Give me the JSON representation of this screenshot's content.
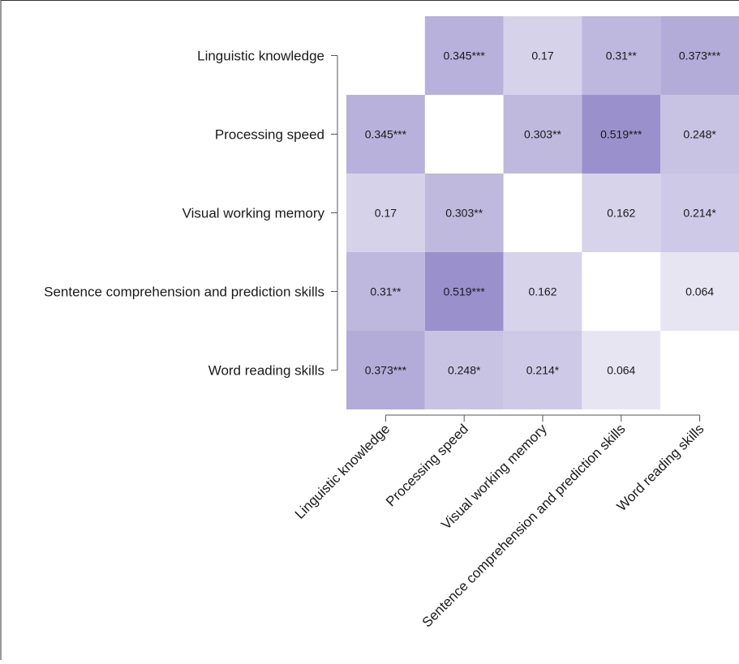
{
  "chart_data": {
    "type": "heatmap",
    "title": "",
    "xlabel": "",
    "ylabel": "",
    "rows": [
      "Linguistic knowledge",
      "Processing speed",
      "Visual working memory",
      "Sentence comprehension and prediction skills",
      "Word reading skills"
    ],
    "columns": [
      "Linguistic knowledge",
      "Processing speed",
      "Visual working memory",
      "Sentence comprehension and prediction skills",
      "Word reading skills"
    ],
    "values": [
      [
        null,
        0.345,
        0.17,
        0.31,
        0.373
      ],
      [
        0.345,
        null,
        0.303,
        0.519,
        0.248
      ],
      [
        0.17,
        0.303,
        null,
        0.162,
        0.214
      ],
      [
        0.31,
        0.519,
        0.162,
        null,
        0.064
      ],
      [
        0.373,
        0.248,
        0.214,
        0.064,
        null
      ]
    ],
    "labels": [
      [
        "",
        "0.345***",
        "0.17",
        "0.31**",
        "0.373***"
      ],
      [
        "0.345***",
        "",
        "0.303**",
        "0.519***",
        "0.248*"
      ],
      [
        "0.17",
        "0.303**",
        "",
        "0.162",
        "0.214*"
      ],
      [
        "0.31**",
        "0.519***",
        "0.162",
        "",
        "0.064"
      ],
      [
        "0.373***",
        "0.248*",
        "0.214*",
        "0.064",
        ""
      ]
    ],
    "color_low": "#f3f1f8",
    "color_high": "#9a91cc",
    "value_range": [
      0,
      0.52
    ],
    "grid": false,
    "legend": "none"
  }
}
